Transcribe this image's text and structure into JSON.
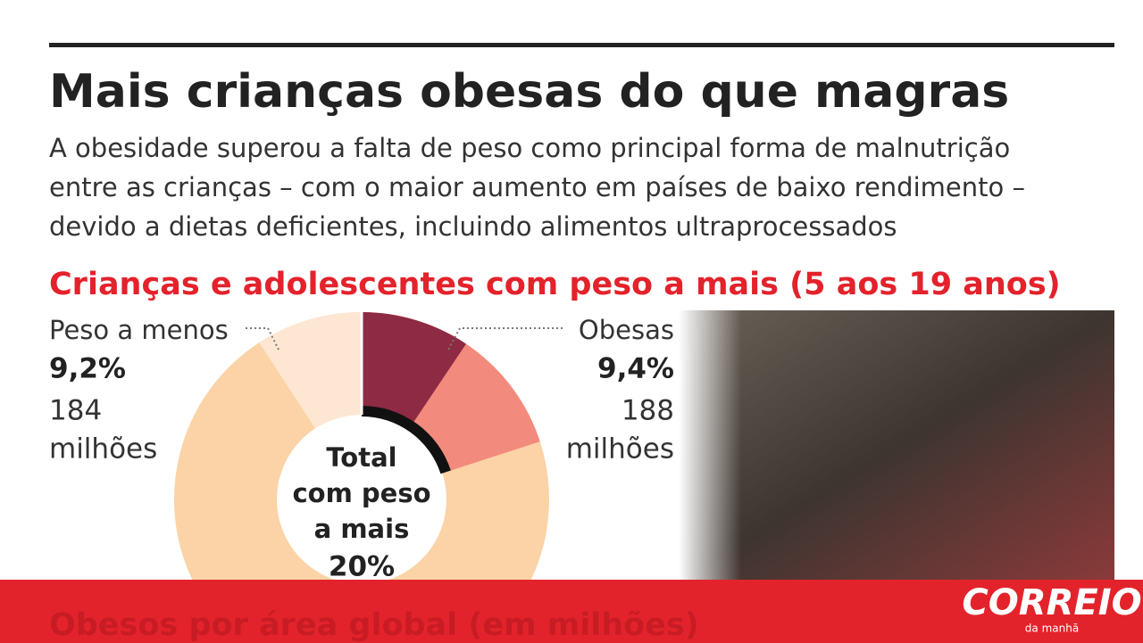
{
  "title": "Mais crianças obesas do que magras",
  "subtitle": [
    "A obesidade superou a falta de peso como principal forma de malnutrição",
    "entre as crianças – com o maior aumento em países de baixo rendimento –",
    "devido a dietas deficientes, incluindo alimentos ultraprocessados"
  ],
  "chart_data": {
    "type": "pie",
    "title": "Crianças e adolescentes com peso a mais (5 aos 19 anos)",
    "categories": [
      "Peso a menos",
      "Obesas"
    ],
    "values": [
      9.2,
      9.4
    ],
    "value_labels": [
      "9,2%",
      "9,4%"
    ],
    "counts": [
      "184",
      "188"
    ],
    "count_units": [
      "milhões",
      "milhões"
    ],
    "colors": [
      "#fde7d2",
      "#8e2a43"
    ],
    "total": {
      "label": [
        "Total",
        "com peso",
        "a mais"
      ],
      "value": 20,
      "value_label": "20%",
      "color": "#f28a7d"
    },
    "rest_color": "#fbd3a6"
  },
  "next_section": "Obesos por área global (em milhões)",
  "logo": {
    "name": "CORREIO",
    "tagline": "da manhã"
  }
}
